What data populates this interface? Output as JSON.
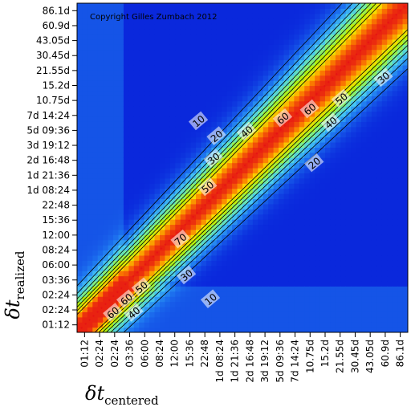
{
  "chart_data": {
    "type": "heatmap",
    "title": "",
    "copyright": "Copyright Gilles Zumbach 2012",
    "xlabel": {
      "symbol": "δt",
      "subscript": "centered"
    },
    "ylabel": {
      "symbol": "δt",
      "subscript": "realized"
    },
    "x_ticks": [
      "01:12",
      "02:24",
      "02:24",
      "03:36",
      "06:00",
      "08:24",
      "12:00",
      "15:36",
      "22:48",
      "1d 08:24",
      "1d 21:36",
      "2d 16:48",
      "3d 19:12",
      "5d 09:36",
      "7d 14:24",
      "10.75d",
      "15.2d",
      "21.55d",
      "30.45d",
      "43.05d",
      "60.9d",
      "86.1d"
    ],
    "y_ticks": [
      "01:12",
      "02:24",
      "02:24",
      "03:36",
      "06:00",
      "08:24",
      "12:00",
      "15:36",
      "22:48",
      "1d 08:24",
      "1d 21:36",
      "2d 16:48",
      "3d 19:12",
      "5d 09:36",
      "7d 14:24",
      "10.75d",
      "15.2d",
      "21.55d",
      "30.45d",
      "43.05d",
      "60.9d",
      "86.1d"
    ],
    "contour_levels": [
      10,
      20,
      30,
      40,
      50,
      60,
      70
    ],
    "contour_labels": [
      {
        "text": "10",
        "x": 8.1,
        "y": 14.1
      },
      {
        "text": "20",
        "x": 9.3,
        "y": 13.1
      },
      {
        "text": "30",
        "x": 9.1,
        "y": 11.6
      },
      {
        "text": "40",
        "x": 11.3,
        "y": 13.4
      },
      {
        "text": "50",
        "x": 8.7,
        "y": 9.7
      },
      {
        "text": "60",
        "x": 13.7,
        "y": 14.3
      },
      {
        "text": "60",
        "x": 15.5,
        "y": 14.9
      },
      {
        "text": "50",
        "x": 17.6,
        "y": 15.6
      },
      {
        "text": "40",
        "x": 16.9,
        "y": 14.0
      },
      {
        "text": "30",
        "x": 20.4,
        "y": 17.0
      },
      {
        "text": "20",
        "x": 15.8,
        "y": 11.3
      },
      {
        "text": "70",
        "x": 6.9,
        "y": 6.2
      },
      {
        "text": "30",
        "x": 7.3,
        "y": 3.8
      },
      {
        "text": "60",
        "x": 3.3,
        "y": 2.2
      },
      {
        "text": "50",
        "x": 4.3,
        "y": 3.0
      },
      {
        "text": "60",
        "x": 2.4,
        "y": 1.3
      },
      {
        "text": "40",
        "x": 3.8,
        "y": 1.3
      },
      {
        "text": "10",
        "x": 8.9,
        "y": 2.2
      }
    ],
    "colorscale": [
      "#0a28dc",
      "#1e78f0",
      "#46c8f5",
      "#78f096",
      "#b4f00a",
      "#fadc00",
      "#fa7800",
      "#e61414"
    ],
    "grid": false,
    "legend": "none"
  }
}
